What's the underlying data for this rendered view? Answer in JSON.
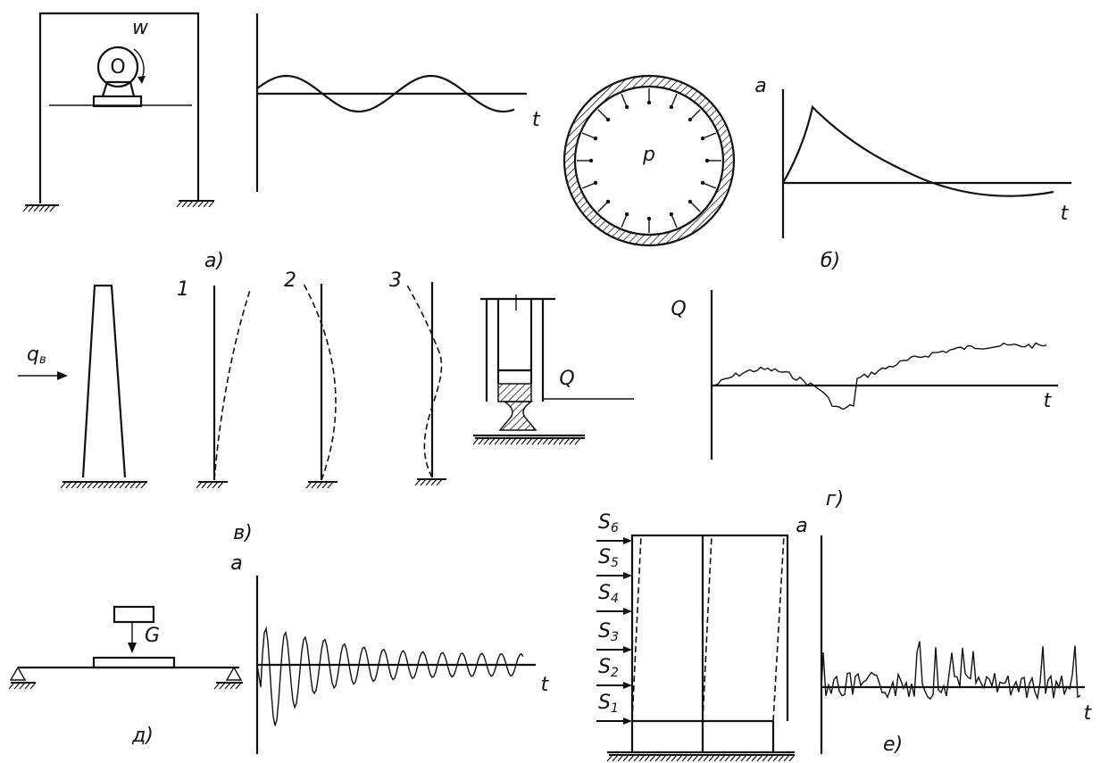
{
  "panel_a": {
    "caption": "а)",
    "rotation_label": "w",
    "motor_label": "O",
    "time_label": "t"
  },
  "panel_b": {
    "caption": "б)",
    "pressure_label": "p",
    "accel_label": "a",
    "time_label": "t"
  },
  "panel_v": {
    "caption": "в)",
    "load_label": "q",
    "load_subscript": "в",
    "mode_labels": [
      "1",
      "2",
      "3"
    ],
    "force_label": "Q"
  },
  "panel_g": {
    "caption": "г)",
    "force_axis_label": "Q",
    "time_label": "t"
  },
  "panel_d": {
    "caption": "д)",
    "weight_label": "G",
    "accel_label": "a",
    "time_label": "t"
  },
  "panel_e": {
    "caption": "е)",
    "floor_loads": [
      {
        "letter": "S",
        "index": "6"
      },
      {
        "letter": "S",
        "index": "5"
      },
      {
        "letter": "S",
        "index": "4"
      },
      {
        "letter": "S",
        "index": "3"
      },
      {
        "letter": "S",
        "index": "2"
      },
      {
        "letter": "S",
        "index": "1"
      }
    ],
    "accel_label": "a",
    "time_label": "t"
  }
}
